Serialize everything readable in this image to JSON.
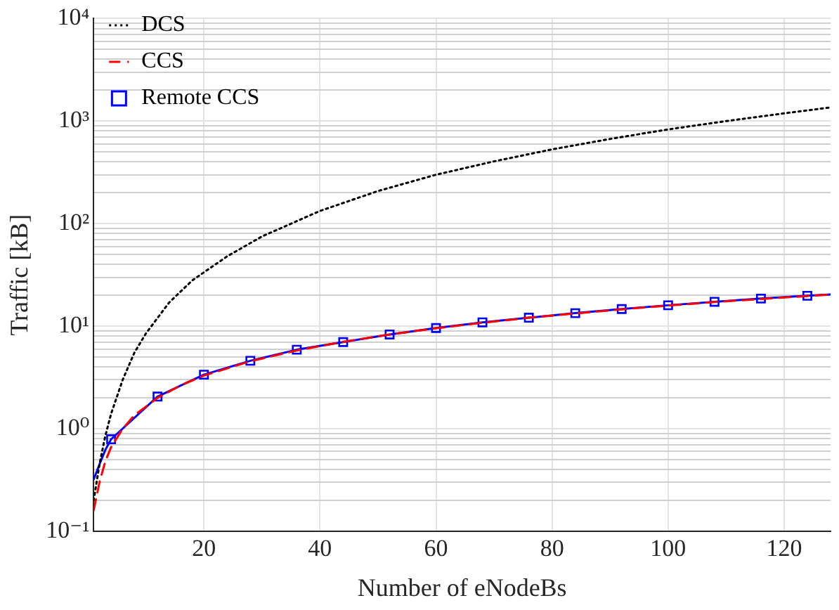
{
  "chart_data": {
    "type": "line",
    "xlabel": "Number of eNodeBs",
    "ylabel": "Traffic [kB]",
    "log": "y",
    "grid": true,
    "legend": "top left",
    "xlim": [
      1,
      128
    ],
    "xticks": [
      20,
      40,
      60,
      80,
      100,
      120
    ],
    "ylim": [
      0.1,
      10000
    ],
    "yticks": [
      {
        "value": 0.1,
        "label": "10⁻¹"
      },
      {
        "value": 0.2,
        "label": null
      },
      {
        "value": 0.3,
        "label": null
      },
      {
        "value": 0.4,
        "label": null
      },
      {
        "value": 0.5,
        "label": null
      },
      {
        "value": 0.6,
        "label": null
      },
      {
        "value": 0.7,
        "label": null
      },
      {
        "value": 0.8,
        "label": null
      },
      {
        "value": 0.9,
        "label": null
      },
      {
        "value": 1,
        "label": "10⁰"
      },
      {
        "value": 2,
        "label": null
      },
      {
        "value": 3,
        "label": null
      },
      {
        "value": 4,
        "label": null
      },
      {
        "value": 5,
        "label": null
      },
      {
        "value": 6,
        "label": null
      },
      {
        "value": 7,
        "label": null
      },
      {
        "value": 8,
        "label": null
      },
      {
        "value": 9,
        "label": null
      },
      {
        "value": 10,
        "label": "10¹"
      },
      {
        "value": 20,
        "label": null
      },
      {
        "value": 30,
        "label": null
      },
      {
        "value": 40,
        "label": null
      },
      {
        "value": 50,
        "label": null
      },
      {
        "value": 60,
        "label": null
      },
      {
        "value": 70,
        "label": null
      },
      {
        "value": 80,
        "label": null
      },
      {
        "value": 90,
        "label": null
      },
      {
        "value": 100,
        "label": "10²"
      },
      {
        "value": 200,
        "label": null
      },
      {
        "value": 300,
        "label": null
      },
      {
        "value": 400,
        "label": null
      },
      {
        "value": 500,
        "label": null
      },
      {
        "value": 600,
        "label": null
      },
      {
        "value": 700,
        "label": null
      },
      {
        "value": 800,
        "label": null
      },
      {
        "value": 900,
        "label": null
      },
      {
        "value": 1000,
        "label": "10³"
      },
      {
        "value": 2000,
        "label": null
      },
      {
        "value": 3000,
        "label": null
      },
      {
        "value": 4000,
        "label": null
      },
      {
        "value": 5000,
        "label": null
      },
      {
        "value": 6000,
        "label": null
      },
      {
        "value": 7000,
        "label": null
      },
      {
        "value": 8000,
        "label": null
      },
      {
        "value": 9000,
        "label": null
      },
      {
        "value": 10000,
        "label": "10⁴"
      }
    ],
    "series": [
      {
        "name": "DCS",
        "color": "#000000",
        "line_style": "dotted",
        "marker": "none",
        "x": [
          1,
          2,
          3,
          4,
          6,
          8,
          10,
          14,
          18,
          24,
          30,
          40,
          50,
          60,
          70,
          80,
          90,
          100,
          110,
          120,
          128
        ],
        "values": [
          0.2,
          0.45,
          0.85,
          1.4,
          3,
          5.5,
          8.5,
          17,
          28,
          48,
          75,
          133,
          208,
          300,
          405,
          530,
          670,
          830,
          1000,
          1190,
          1360
        ]
      },
      {
        "name": "CCS",
        "color": "#ff0000",
        "line_style": "dashed",
        "marker": "none",
        "x": [
          1,
          2,
          3,
          4,
          6,
          8,
          12,
          16,
          20,
          28,
          36,
          44,
          52,
          60,
          68,
          76,
          84,
          92,
          100,
          108,
          116,
          124,
          128
        ],
        "values": [
          0.16,
          0.3,
          0.48,
          0.66,
          1.0,
          1.35,
          2.0,
          2.65,
          3.3,
          4.55,
          5.8,
          7.05,
          8.3,
          9.55,
          10.8,
          12.1,
          13.3,
          14.6,
          15.9,
          17.2,
          18.4,
          19.7,
          20.3
        ]
      },
      {
        "name": "Remote CCS",
        "color": "#0000ff",
        "line_style": "solid",
        "marker": "square",
        "x": [
          4,
          12,
          20,
          28,
          36,
          44,
          52,
          60,
          68,
          76,
          84,
          92,
          100,
          108,
          116,
          124
        ],
        "values": [
          0.79,
          2.06,
          3.37,
          4.6,
          5.9,
          7.0,
          8.3,
          9.6,
          10.9,
          12.1,
          13.4,
          14.7,
          16.0,
          17.3,
          18.6,
          19.8
        ]
      },
      {
        "color": "#0000ff",
        "line_style": "solid",
        "marker": "none",
        "x": [
          1,
          2,
          3,
          4
        ],
        "values": [
          0.32,
          0.45,
          0.62,
          0.79
        ]
      },
      {
        "color": "#0000ff",
        "line_style": "solid",
        "marker": "none",
        "x": [
          124,
          128
        ],
        "values": [
          19.8,
          20.4
        ]
      }
    ]
  }
}
